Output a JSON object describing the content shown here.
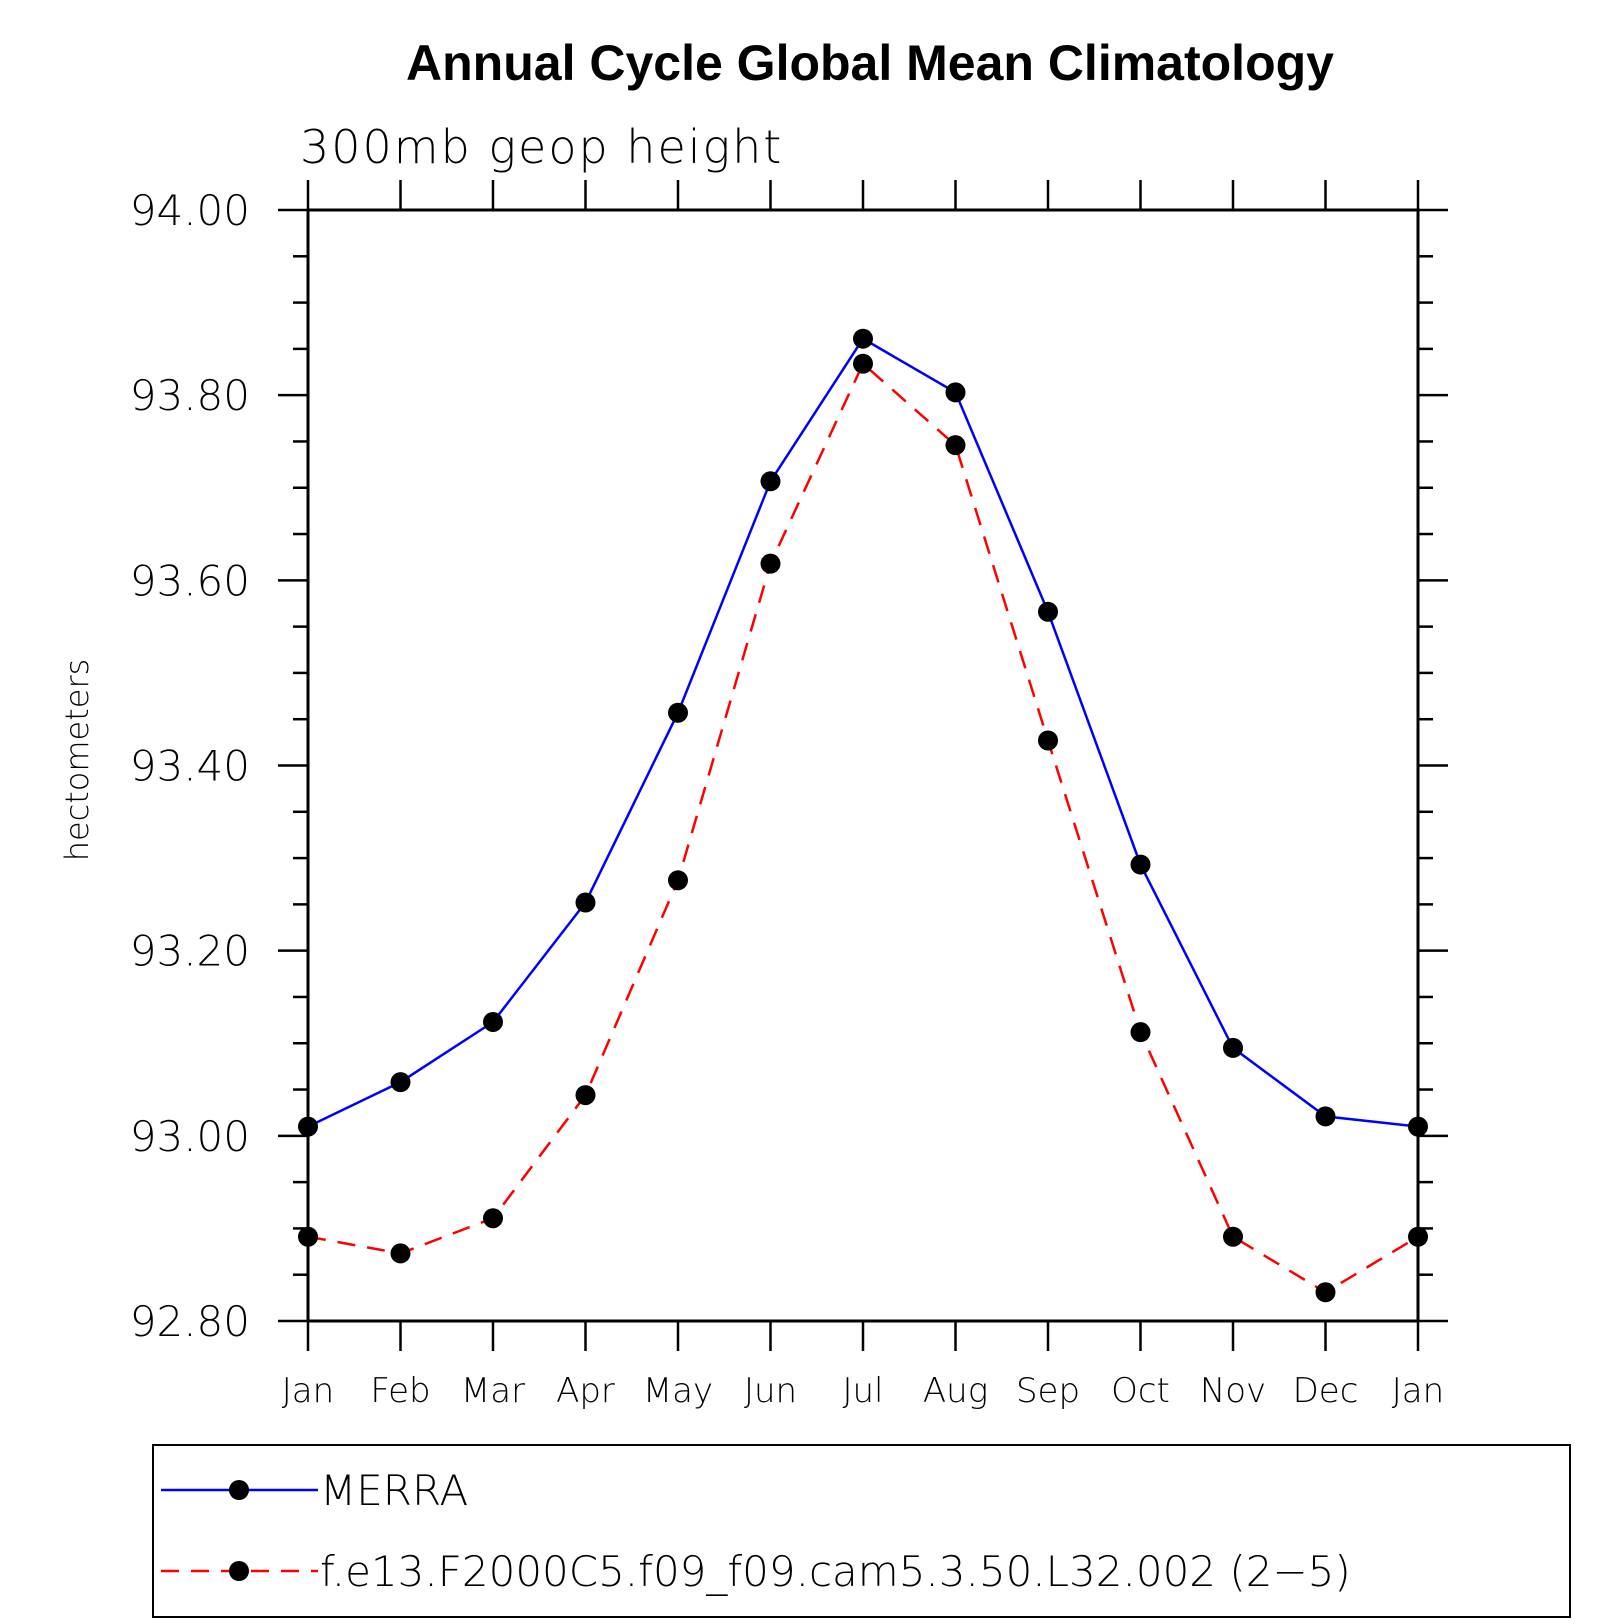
{
  "chart_data": {
    "type": "line",
    "title": "Annual Cycle Global Mean Climatology",
    "subtitle": "300mb geop height",
    "xlabel": "",
    "ylabel": "hectometers",
    "categories": [
      "Jan",
      "Feb",
      "Mar",
      "Apr",
      "May",
      "Jun",
      "Jul",
      "Aug",
      "Sep",
      "Oct",
      "Nov",
      "Dec",
      "Jan"
    ],
    "ylim": [
      92.8,
      94.0
    ],
    "yticks": [
      "92.80",
      "93.00",
      "93.20",
      "93.40",
      "93.60",
      "93.80",
      "94.00"
    ],
    "ytick_values": [
      92.8,
      93.0,
      93.2,
      93.4,
      93.6,
      93.8,
      94.0
    ],
    "series": [
      {
        "name": "MERRA",
        "color": "#0000ff",
        "style": "solid",
        "marker": "filled-circle",
        "values": [
          93.01,
          93.058,
          93.123,
          93.252,
          93.457,
          93.707,
          93.861,
          93.803,
          93.566,
          93.293,
          93.095,
          93.021,
          93.01
        ]
      },
      {
        "name": "f.e13.F2000C5.f09_f09.cam5.3.50.L32.002 (2−5)",
        "color": "#ff0000",
        "style": "dashed",
        "marker": "filled-circle",
        "values": [
          92.891,
          92.873,
          92.911,
          93.044,
          93.276,
          93.618,
          93.834,
          93.746,
          93.427,
          93.112,
          92.891,
          92.831,
          92.891
        ]
      }
    ],
    "grid": false,
    "legend_position": "bottom"
  }
}
